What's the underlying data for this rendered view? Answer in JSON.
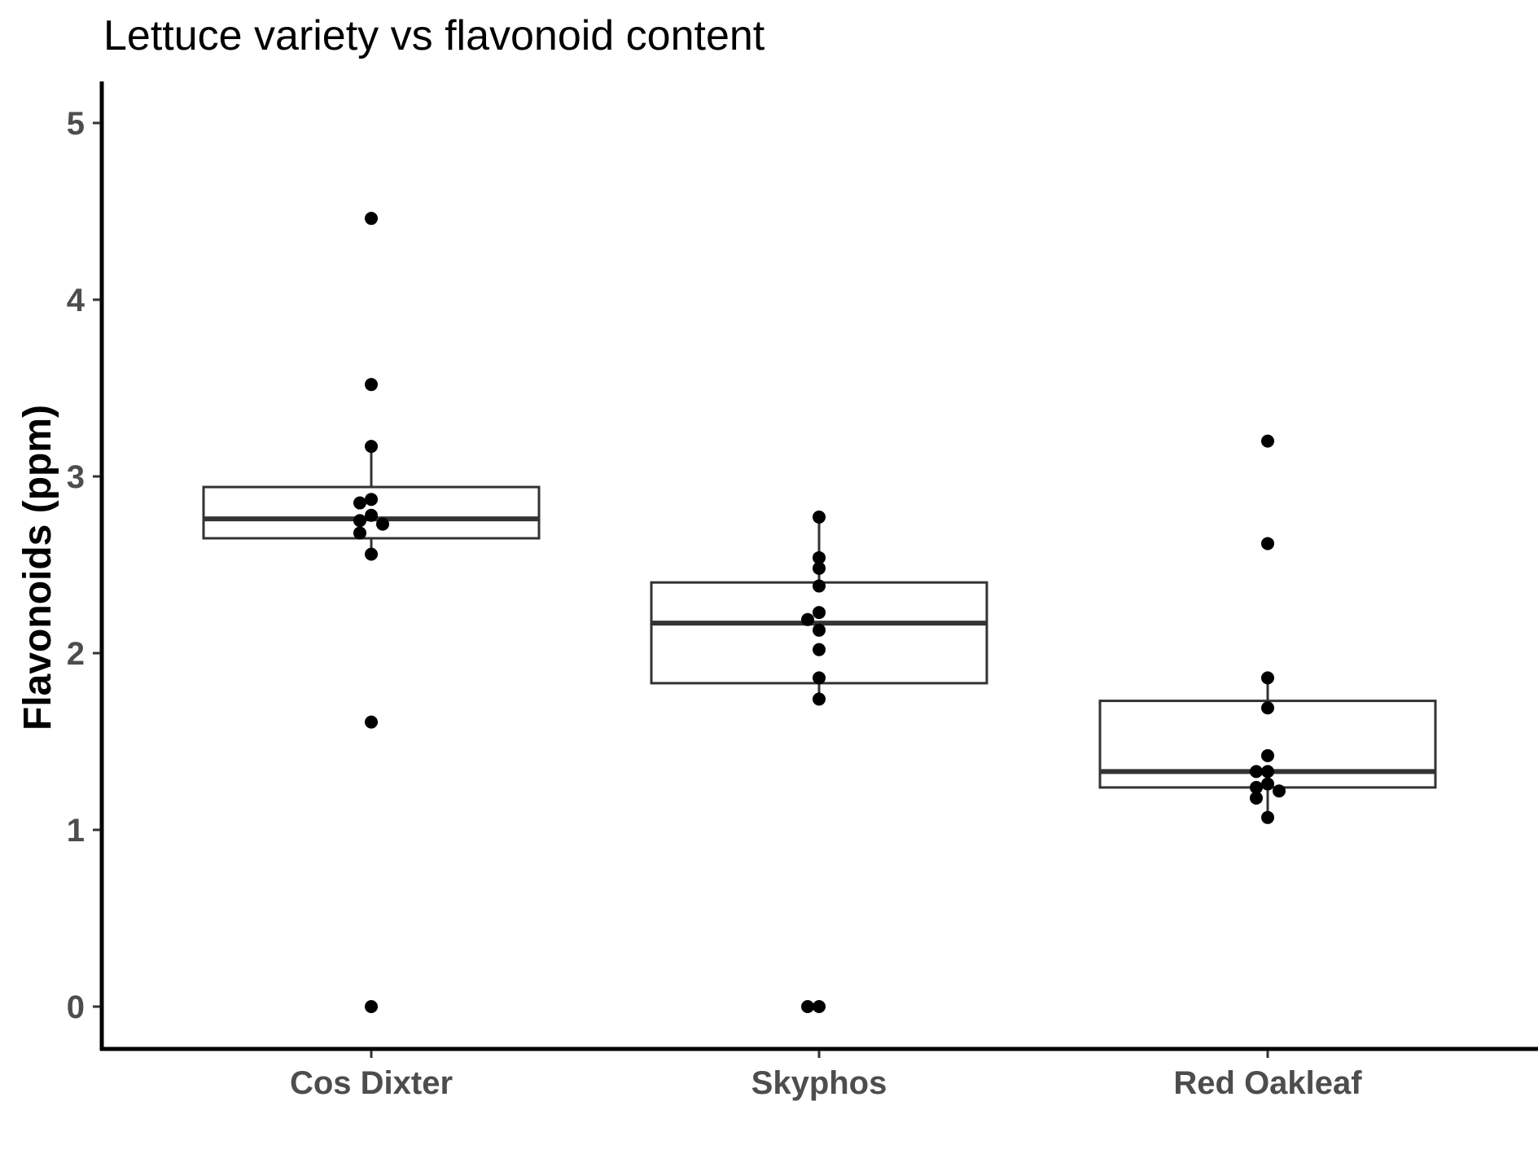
{
  "chart_data": {
    "type": "box",
    "title": "Lettuce variety vs flavonoid content",
    "xlabel": "",
    "ylabel": "Flavonoids (ppm)",
    "ylim": [
      -0.23,
      5.25
    ],
    "yticks": [
      "0",
      "1",
      "2",
      "3",
      "4",
      "5"
    ],
    "categories": [
      "Cos Dixter",
      "Skyphos",
      "Red Oakleaf"
    ],
    "boxes": [
      {
        "category": "Cos Dixter",
        "q1": 2.65,
        "median": 2.76,
        "q3": 2.94,
        "whisker_low": 2.56,
        "whisker_high": 3.17
      },
      {
        "category": "Skyphos",
        "q1": 1.83,
        "median": 2.17,
        "q3": 2.4,
        "whisker_low": 1.74,
        "whisker_high": 2.77
      },
      {
        "category": "Red Oakleaf",
        "q1": 1.24,
        "median": 1.33,
        "q3": 1.73,
        "whisker_low": 1.07,
        "whisker_high": 1.86
      }
    ],
    "points": [
      {
        "category": "Cos Dixter",
        "values": [
          4.46,
          3.52,
          3.17,
          2.87,
          2.85,
          2.78,
          2.75,
          2.73,
          2.68,
          2.56,
          1.61,
          0.0
        ]
      },
      {
        "category": "Skyphos",
        "values": [
          2.77,
          2.54,
          2.48,
          2.38,
          2.23,
          2.19,
          2.13,
          2.02,
          1.86,
          1.74,
          0.0,
          0.0
        ]
      },
      {
        "category": "Red Oakleaf",
        "values": [
          3.2,
          2.62,
          1.86,
          1.69,
          1.42,
          1.33,
          1.33,
          1.26,
          1.24,
          1.22,
          1.18,
          1.07
        ]
      }
    ],
    "grid": false,
    "legend": "none"
  }
}
